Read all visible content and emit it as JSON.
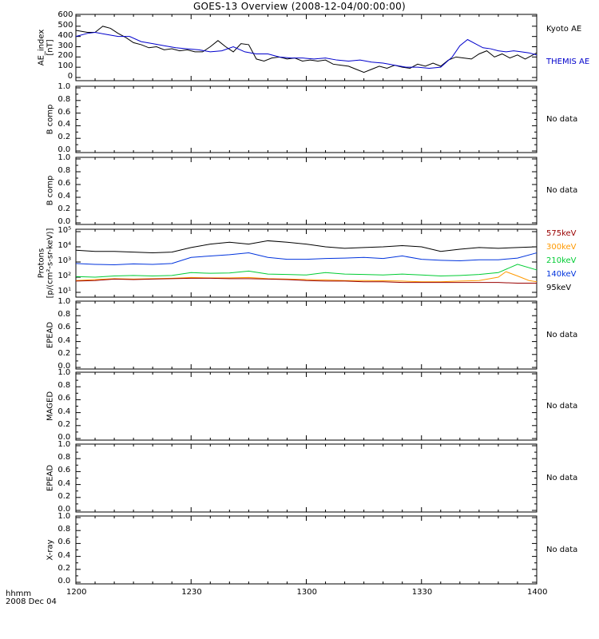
{
  "title": "GOES-13 Overview (2008-12-04/00:00:00)",
  "footer": {
    "line1": "hhmm",
    "line2": "2008 Dec 04"
  },
  "x_axis": {
    "ticks": [
      "1200",
      "1230",
      "1300",
      "1330",
      "1400"
    ]
  },
  "panels": [
    {
      "id": "ae",
      "ylabel_lines": [
        "AE_index",
        "[nT]"
      ],
      "side": []
    },
    {
      "id": "b1",
      "ylabel_lines": [
        "B comp"
      ],
      "side_text": "No data"
    },
    {
      "id": "b2",
      "ylabel_lines": [
        "B comp"
      ],
      "side_text": "No data"
    },
    {
      "id": "protons",
      "ylabel_lines": [
        "Protons",
        "[p/(cm²-s-sr-keV)]"
      ]
    },
    {
      "id": "epead1",
      "ylabel_lines": [
        "EPEAD"
      ],
      "side_text": "No data"
    },
    {
      "id": "maged",
      "ylabel_lines": [
        "MAGED"
      ],
      "side_text": "No data"
    },
    {
      "id": "epead2",
      "ylabel_lines": [
        "EPEAD"
      ],
      "side_text": "No data"
    },
    {
      "id": "xray",
      "ylabel_lines": [
        "X-ray"
      ],
      "side_text": "No data"
    }
  ],
  "ae_legend": [
    {
      "name": "Kyoto AE",
      "color": "#000000"
    },
    {
      "name": "THEMIS AE",
      "color": "#0000cc"
    }
  ],
  "proton_legend": [
    {
      "name": "575keV",
      "color": "#990000"
    },
    {
      "name": "300keV",
      "color": "#ff9900"
    },
    {
      "name": "210keV",
      "color": "#00cc33"
    },
    {
      "name": "140keV",
      "color": "#0033dd"
    },
    {
      "name": "95keV",
      "color": "#000000"
    }
  ],
  "chart_data": [
    {
      "type": "line",
      "panel": "ae",
      "ylim": [
        0,
        600
      ],
      "yticks": [
        "0",
        "100",
        "200",
        "300",
        "400",
        "500",
        "600"
      ],
      "xlim": [
        0,
        120
      ],
      "series": [
        {
          "name": "Kyoto AE",
          "x": [
            0,
            3,
            5,
            7,
            9,
            11,
            13,
            15,
            17,
            19,
            21,
            23,
            25,
            27,
            29,
            31,
            33,
            35,
            37,
            39,
            41,
            43,
            45,
            47,
            49,
            51,
            53,
            55,
            57,
            59,
            61,
            63,
            65,
            67,
            69,
            71,
            73,
            75,
            77,
            79,
            81,
            83,
            85,
            87,
            89,
            91,
            93,
            95,
            97,
            99,
            101,
            103,
            105,
            107,
            109,
            111,
            113,
            115,
            117,
            119,
            120
          ],
          "y": [
            460,
            440,
            440,
            500,
            480,
            430,
            390,
            340,
            320,
            290,
            300,
            270,
            280,
            260,
            270,
            250,
            250,
            300,
            360,
            300,
            250,
            330,
            320,
            180,
            160,
            190,
            200,
            180,
            190,
            160,
            170,
            160,
            170,
            130,
            120,
            110,
            80,
            50,
            80,
            110,
            90,
            120,
            100,
            90,
            130,
            110,
            140,
            110,
            170,
            200,
            190,
            180,
            230,
            260,
            200,
            230,
            190,
            220,
            180,
            220,
            240
          ]
        },
        {
          "name": "THEMIS AE",
          "x": [
            0,
            3,
            5,
            8,
            11,
            14,
            17,
            20,
            23,
            26,
            29,
            32,
            35,
            38,
            41,
            44,
            47,
            50,
            53,
            56,
            59,
            62,
            65,
            68,
            71,
            74,
            77,
            80,
            83,
            86,
            89,
            92,
            95,
            98,
            100,
            102,
            104,
            106,
            108,
            110,
            112,
            114,
            116,
            118,
            120
          ],
          "y": [
            400,
            430,
            440,
            420,
            400,
            400,
            350,
            330,
            310,
            290,
            280,
            270,
            250,
            260,
            300,
            250,
            230,
            230,
            200,
            190,
            190,
            180,
            190,
            170,
            160,
            170,
            150,
            140,
            120,
            100,
            100,
            90,
            100,
            200,
            310,
            370,
            330,
            290,
            280,
            260,
            250,
            260,
            250,
            240,
            220
          ]
        }
      ]
    },
    {
      "type": "line",
      "panel": "protons",
      "yscale": "log",
      "ylim": [
        10,
        100000
      ],
      "yticks": [
        "10¹",
        "10²",
        "10³",
        "10⁴",
        "10⁵"
      ],
      "xlim": [
        0,
        120
      ],
      "series": [
        {
          "name": "95keV",
          "x": [
            0,
            5,
            10,
            15,
            20,
            25,
            30,
            35,
            40,
            45,
            50,
            55,
            60,
            65,
            70,
            75,
            80,
            85,
            90,
            95,
            100,
            105,
            110,
            115,
            120
          ],
          "y": [
            6000,
            5000,
            5000,
            4500,
            4000,
            4500,
            9000,
            15000,
            20000,
            15000,
            25000,
            20000,
            15000,
            10000,
            8000,
            9000,
            10000,
            12000,
            10000,
            5000,
            7000,
            9000,
            8000,
            9000,
            10000
          ]
        },
        {
          "name": "140keV",
          "x": [
            0,
            5,
            10,
            15,
            20,
            25,
            30,
            35,
            40,
            45,
            50,
            55,
            60,
            65,
            70,
            75,
            80,
            85,
            90,
            95,
            100,
            105,
            110,
            115,
            120
          ],
          "y": [
            800,
            700,
            650,
            750,
            700,
            800,
            2000,
            2500,
            3000,
            4000,
            2000,
            1500,
            1500,
            1700,
            1800,
            2000,
            1700,
            2500,
            1500,
            1300,
            1200,
            1400,
            1400,
            1800,
            4000
          ]
        },
        {
          "name": "210keV",
          "x": [
            0,
            5,
            10,
            15,
            20,
            25,
            30,
            35,
            40,
            45,
            50,
            55,
            60,
            65,
            70,
            75,
            80,
            85,
            90,
            95,
            100,
            105,
            110,
            115,
            120
          ],
          "y": [
            110,
            100,
            120,
            130,
            120,
            130,
            200,
            180,
            190,
            250,
            160,
            150,
            140,
            200,
            160,
            150,
            140,
            160,
            140,
            120,
            130,
            150,
            200,
            700,
            300
          ]
        },
        {
          "name": "300keV",
          "x": [
            0,
            5,
            10,
            15,
            20,
            25,
            30,
            35,
            40,
            45,
            50,
            55,
            60,
            65,
            70,
            75,
            80,
            85,
            90,
            95,
            100,
            105,
            110,
            112,
            115,
            118,
            120
          ],
          "y": [
            60,
            70,
            80,
            75,
            80,
            85,
            95,
            90,
            90,
            95,
            80,
            75,
            70,
            65,
            60,
            60,
            58,
            55,
            50,
            50,
            55,
            60,
            100,
            230,
            120,
            60,
            50
          ]
        },
        {
          "name": "575keV",
          "x": [
            0,
            5,
            10,
            15,
            20,
            25,
            30,
            35,
            40,
            45,
            50,
            55,
            60,
            65,
            70,
            75,
            80,
            85,
            90,
            95,
            100,
            105,
            110,
            115,
            120
          ],
          "y": [
            55,
            60,
            75,
            70,
            75,
            80,
            85,
            85,
            80,
            80,
            75,
            70,
            60,
            55,
            55,
            50,
            50,
            45,
            45,
            45,
            45,
            45,
            45,
            40,
            40
          ]
        }
      ]
    }
  ]
}
